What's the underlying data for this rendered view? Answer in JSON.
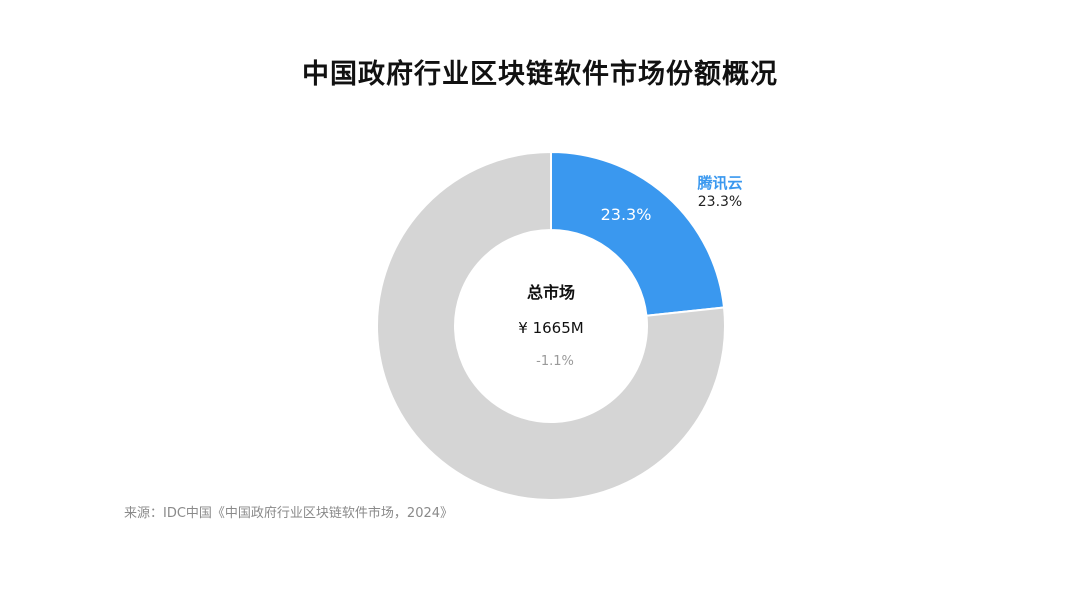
{
  "title": "中国政府行业区块链软件市场份额概况",
  "chart_data": {
    "type": "pie",
    "variant": "donut",
    "slices": [
      {
        "name": "腾讯云",
        "value": 23.3,
        "inner_label": "23.3%",
        "outer_label_value": "23.3%",
        "color": "#3a98ef"
      },
      {
        "name": "",
        "value": 76.7,
        "color": "#d5d5d5"
      }
    ],
    "center": {
      "title": "总市场",
      "value": "¥ 1665M",
      "change": "-1.1%"
    }
  },
  "source": "来源：IDC中国《中国政府行业区块链软件市场，2024》",
  "colors": {
    "accent": "#3a98ef",
    "remainder": "#d5d5d5",
    "change_text": "#9a9a9a"
  }
}
